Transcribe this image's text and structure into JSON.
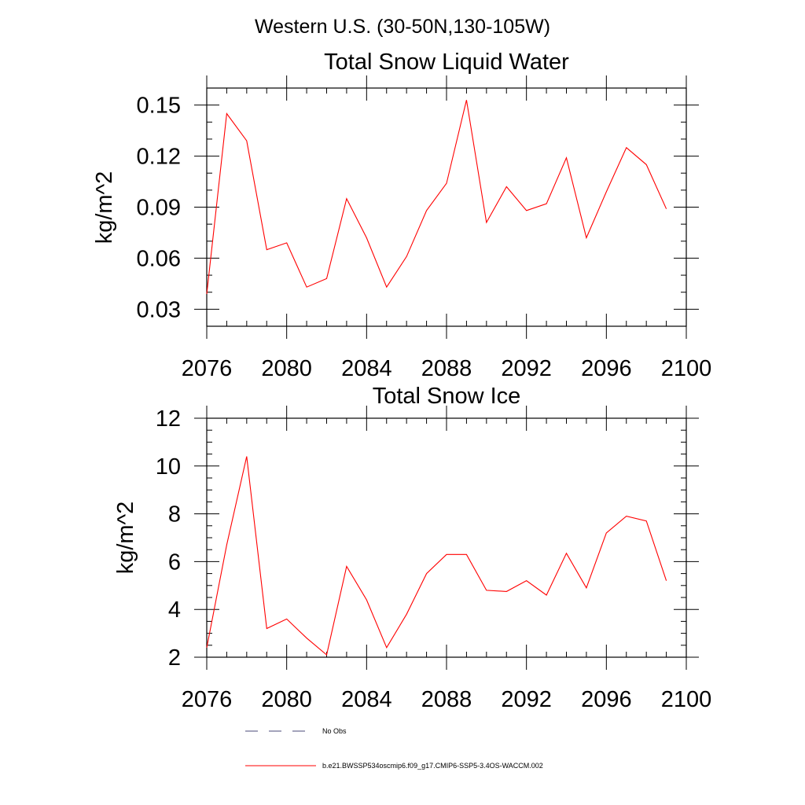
{
  "suptitle": "Western U.S. (30-50N,130-105W)",
  "chart_data": [
    {
      "type": "line",
      "title": "Total Snow Liquid Water",
      "xlabel": "",
      "ylabel": "kg/m^2",
      "xlim": [
        2076,
        2100
      ],
      "ylim": [
        0.02,
        0.16
      ],
      "xticks": [
        2076,
        2080,
        2084,
        2088,
        2092,
        2096,
        2100
      ],
      "xtick_labels": [
        "2076",
        "2080",
        "2084",
        "2088",
        "2092",
        "2096",
        "2100"
      ],
      "yticks": [
        0.03,
        0.06,
        0.09,
        0.12,
        0.15
      ],
      "ytick_labels": [
        "0.03",
        "0.06",
        "0.09",
        "0.12",
        "0.15"
      ],
      "x": [
        2076,
        2077,
        2078,
        2079,
        2080,
        2081,
        2082,
        2083,
        2084,
        2085,
        2086,
        2087,
        2088,
        2089,
        2090,
        2091,
        2092,
        2093,
        2094,
        2095,
        2096,
        2097,
        2098,
        2099
      ],
      "series": [
        {
          "color": "#ff0000",
          "values": [
            0.039,
            0.145,
            0.129,
            0.065,
            0.069,
            0.043,
            0.048,
            0.095,
            0.072,
            0.043,
            0.061,
            0.088,
            0.104,
            0.153,
            0.081,
            0.102,
            0.088,
            0.092,
            0.119,
            0.072,
            0.099,
            0.125,
            0.115,
            0.089
          ]
        }
      ],
      "grid": false
    },
    {
      "type": "line",
      "title": "Total Snow Ice",
      "xlabel": "",
      "ylabel": "kg/m^2",
      "xlim": [
        2076,
        2100
      ],
      "ylim": [
        2,
        12
      ],
      "xticks": [
        2076,
        2080,
        2084,
        2088,
        2092,
        2096,
        2100
      ],
      "xtick_labels": [
        "2076",
        "2080",
        "2084",
        "2088",
        "2092",
        "2096",
        "2100"
      ],
      "yticks": [
        2,
        4,
        6,
        8,
        10,
        12
      ],
      "ytick_labels": [
        "2",
        "4",
        "6",
        "8",
        "10",
        "12"
      ],
      "x": [
        2076,
        2077,
        2078,
        2079,
        2080,
        2081,
        2082,
        2083,
        2084,
        2085,
        2086,
        2087,
        2088,
        2089,
        2090,
        2091,
        2092,
        2093,
        2094,
        2095,
        2096,
        2097,
        2098,
        2099
      ],
      "series": [
        {
          "color": "#ff0000",
          "values": [
            2.4,
            6.7,
            10.4,
            3.2,
            3.6,
            2.8,
            2.1,
            5.8,
            4.4,
            2.4,
            3.8,
            5.5,
            6.3,
            6.3,
            4.8,
            4.75,
            5.2,
            4.6,
            6.35,
            4.9,
            7.2,
            7.9,
            7.7,
            5.2
          ]
        }
      ],
      "grid": false
    }
  ],
  "legend": [
    {
      "label": "No Obs",
      "color": "#4a4a7a",
      "style": "dashed"
    },
    {
      "label": "b.e21.BWSSP534oscmip6.f09_g17.CMIP6-SSP5-3.4OS-WACCM.002",
      "color": "#ff0000",
      "style": "solid"
    }
  ]
}
